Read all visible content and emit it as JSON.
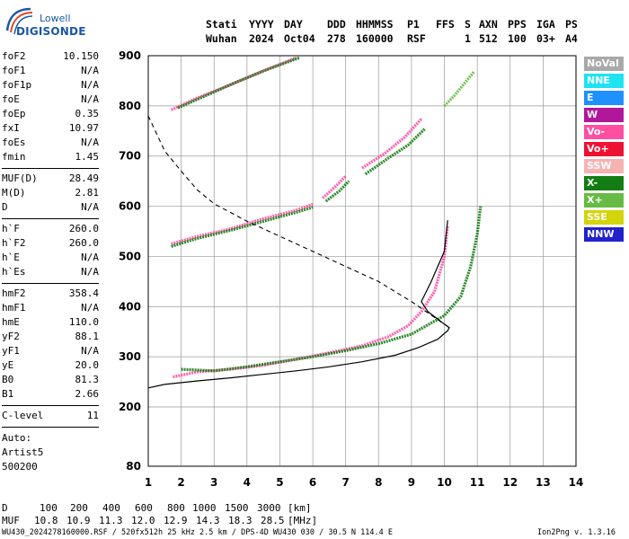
{
  "logo": {
    "line1": "Lowell",
    "line2": "DIGISONDE"
  },
  "header": {
    "labels": [
      "Stati",
      "YYYY",
      "DAY",
      "DDD",
      "HHMMSS",
      "P1",
      "FFS",
      "S",
      "AXN",
      "PPS",
      "IGA",
      "PS"
    ],
    "values": [
      "Wuhan",
      "2024",
      "Oct04",
      "278",
      "160000",
      "RSF",
      "1",
      "512",
      "100",
      "03+",
      "A4"
    ]
  },
  "params": {
    "group1": [
      {
        "label": "foF2",
        "value": "10.150"
      },
      {
        "label": "foF1",
        "value": "N/A"
      },
      {
        "label": "foF1p",
        "value": "N/A"
      },
      {
        "label": "foE",
        "value": "N/A"
      },
      {
        "label": "foEp",
        "value": "0.35"
      },
      {
        "label": "fxI",
        "value": "10.97"
      },
      {
        "label": "foEs",
        "value": "N/A"
      },
      {
        "label": "fmin",
        "value": "1.45"
      }
    ],
    "group2": [
      {
        "label": "MUF(D)",
        "value": "28.49"
      },
      {
        "label": "M(D)",
        "value": "2.81"
      },
      {
        "label": "D",
        "value": "N/A"
      }
    ],
    "group3": [
      {
        "label": "h`F",
        "value": "260.0"
      },
      {
        "label": "h`F2",
        "value": "260.0"
      },
      {
        "label": "h`E",
        "value": "N/A"
      },
      {
        "label": "h`Es",
        "value": "N/A"
      }
    ],
    "group4": [
      {
        "label": "hmF2",
        "value": "358.4"
      },
      {
        "label": "hmF1",
        "value": "N/A"
      },
      {
        "label": "hmE",
        "value": "110.0"
      },
      {
        "label": "yF2",
        "value": "88.1"
      },
      {
        "label": "yF1",
        "value": "N/A"
      },
      {
        "label": "yE",
        "value": "20.0"
      },
      {
        "label": "B0",
        "value": "81.3"
      },
      {
        "label": "B1",
        "value": "2.66"
      }
    ],
    "group5": [
      {
        "label": "C-level",
        "value": "11"
      }
    ],
    "auto": [
      "Auto:",
      "Artist5",
      "500200"
    ]
  },
  "legend": [
    {
      "label": "NoVal",
      "color": "#a9a9a9"
    },
    {
      "label": "NNE",
      "color": "#1ee3f0"
    },
    {
      "label": "E",
      "color": "#1e90ff"
    },
    {
      "label": "W",
      "color": "#b0179a"
    },
    {
      "label": "Vo-",
      "color": "#ff4fa3"
    },
    {
      "label": "Vo+",
      "color": "#ee1133"
    },
    {
      "label": "SSW",
      "color": "#f7b2b2"
    },
    {
      "label": "X-",
      "color": "#137d13"
    },
    {
      "label": "X+",
      "color": "#66bb44"
    },
    {
      "label": "SSE",
      "color": "#d4d40a"
    },
    {
      "label": "NNW",
      "color": "#2222cc"
    }
  ],
  "bottom": {
    "d_label": "D",
    "d_values": [
      "100",
      "200",
      "400",
      "600",
      "800",
      "1000",
      "1500",
      "3000",
      "[km]"
    ],
    "muf_label": "MUF",
    "muf_values": [
      "10.8",
      "10.9",
      "11.3",
      "12.0",
      "12.9",
      "14.3",
      "18.3",
      "28.5",
      "[MHz]"
    ],
    "footer_left": "WU430_2024278160000.RSF / 520fx512h 25 kHz 2.5 km / DPS-4D WU430 030 / 30.5 N 114.4 E",
    "footer_right": "Ion2Png v. 1.3.16"
  },
  "chart_data": {
    "type": "scatter",
    "xlim": [
      1,
      14
    ],
    "ylim": [
      80,
      900
    ],
    "x_ticks": [
      1,
      2,
      3,
      4,
      5,
      6,
      7,
      8,
      9,
      10,
      11,
      12,
      13,
      14
    ],
    "y_ticks": [
      80,
      200,
      300,
      400,
      500,
      600,
      700,
      800,
      900
    ],
    "grid": true,
    "series": [
      {
        "name": "Vo-",
        "color": "#ff4fa3",
        "traces": [
          [
            [
              1.75,
              260
            ],
            [
              2.5,
              270
            ],
            [
              3.5,
              275
            ],
            [
              4.5,
              283
            ],
            [
              5.5,
              295
            ],
            [
              6.5,
              308
            ],
            [
              7.5,
              322
            ],
            [
              8.3,
              340
            ],
            [
              8.9,
              362
            ],
            [
              9.3,
              390
            ],
            [
              9.7,
              430
            ],
            [
              10.0,
              500
            ],
            [
              10.1,
              560
            ]
          ],
          [
            [
              1.7,
              525
            ],
            [
              2.5,
              540
            ],
            [
              3.5,
              555
            ],
            [
              4.5,
              575
            ],
            [
              5.5,
              592
            ],
            [
              6.0,
              604
            ]
          ],
          [
            [
              6.3,
              616
            ],
            [
              6.7,
              640
            ],
            [
              7.0,
              660
            ]
          ],
          [
            [
              7.5,
              676
            ],
            [
              8.2,
              706
            ],
            [
              8.8,
              738
            ],
            [
              9.3,
              774
            ]
          ],
          [
            [
              1.7,
              792
            ],
            [
              2.5,
              816
            ],
            [
              3.5,
              842
            ],
            [
              4.5,
              870
            ],
            [
              5.5,
              896
            ]
          ]
        ]
      },
      {
        "name": "X-",
        "color": "#137d13",
        "traces": [
          [
            [
              2.0,
              275
            ],
            [
              3.0,
              272
            ],
            [
              4.0,
              280
            ],
            [
              5.0,
              290
            ],
            [
              6.0,
              300
            ],
            [
              7.0,
              312
            ],
            [
              8.0,
              326
            ],
            [
              9.0,
              345
            ],
            [
              10.0,
              382
            ],
            [
              10.5,
              420
            ],
            [
              10.8,
              480
            ],
            [
              11.0,
              545
            ],
            [
              11.1,
              600
            ]
          ],
          [
            [
              1.7,
              520
            ],
            [
              2.5,
              536
            ],
            [
              3.5,
              552
            ],
            [
              4.5,
              570
            ],
            [
              5.5,
              588
            ],
            [
              6.0,
              598
            ]
          ],
          [
            [
              6.4,
              610
            ],
            [
              6.8,
              630
            ],
            [
              7.1,
              650
            ]
          ],
          [
            [
              7.6,
              664
            ],
            [
              8.3,
              696
            ],
            [
              8.9,
              722
            ],
            [
              9.4,
              754
            ]
          ],
          [
            [
              1.9,
              796
            ],
            [
              2.8,
              822
            ],
            [
              3.7,
              848
            ],
            [
              4.6,
              872
            ],
            [
              5.6,
              896
            ]
          ]
        ]
      },
      {
        "name": "X+",
        "color": "#66bb44",
        "traces": [
          [
            [
              10.0,
              800
            ],
            [
              10.3,
              820
            ],
            [
              10.6,
              844
            ],
            [
              10.9,
              868
            ]
          ]
        ]
      }
    ],
    "profile_solid": [
      [
        1.0,
        238
      ],
      [
        1.5,
        245
      ],
      [
        2.5,
        252
      ],
      [
        3.5,
        258
      ],
      [
        4.5,
        265
      ],
      [
        5.5,
        272
      ],
      [
        6.5,
        280
      ],
      [
        7.5,
        290
      ],
      [
        8.5,
        303
      ],
      [
        9.2,
        318
      ],
      [
        9.8,
        335
      ],
      [
        10.1,
        352
      ],
      [
        10.15,
        358
      ],
      [
        10.0,
        365
      ],
      [
        9.5,
        390
      ],
      [
        9.3,
        410
      ],
      [
        9.6,
        450
      ],
      [
        10.0,
        510
      ],
      [
        10.1,
        572
      ]
    ],
    "profile_dashed": [
      [
        1.0,
        780
      ],
      [
        1.5,
        710
      ],
      [
        2.0,
        670
      ],
      [
        2.5,
        632
      ],
      [
        3.0,
        605
      ],
      [
        4.0,
        570
      ],
      [
        5.0,
        540
      ],
      [
        6.0,
        510
      ],
      [
        7.0,
        480
      ],
      [
        8.0,
        450
      ],
      [
        9.0,
        410
      ],
      [
        10.15,
        358
      ]
    ]
  }
}
